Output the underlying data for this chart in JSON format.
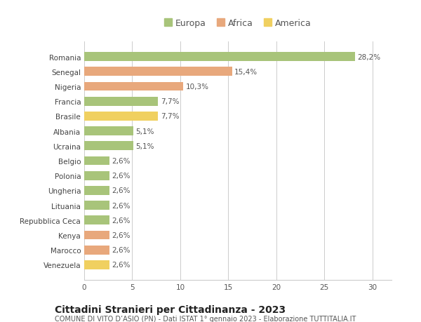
{
  "countries": [
    "Romania",
    "Senegal",
    "Nigeria",
    "Francia",
    "Brasile",
    "Albania",
    "Ucraina",
    "Belgio",
    "Polonia",
    "Ungheria",
    "Lituania",
    "Repubblica Ceca",
    "Kenya",
    "Marocco",
    "Venezuela"
  ],
  "values": [
    28.2,
    15.4,
    10.3,
    7.7,
    7.7,
    5.1,
    5.1,
    2.6,
    2.6,
    2.6,
    2.6,
    2.6,
    2.6,
    2.6,
    2.6
  ],
  "labels": [
    "28,2%",
    "15,4%",
    "10,3%",
    "7,7%",
    "7,7%",
    "5,1%",
    "5,1%",
    "2,6%",
    "2,6%",
    "2,6%",
    "2,6%",
    "2,6%",
    "2,6%",
    "2,6%",
    "2,6%"
  ],
  "continents": [
    "Europa",
    "Africa",
    "Africa",
    "Europa",
    "America",
    "Europa",
    "Europa",
    "Europa",
    "Europa",
    "Europa",
    "Europa",
    "Europa",
    "Africa",
    "Africa",
    "America"
  ],
  "colors": {
    "Europa": "#a8c47a",
    "Africa": "#e8a87c",
    "America": "#f0d060"
  },
  "title": "Cittadini Stranieri per Cittadinanza - 2023",
  "subtitle": "COMUNE DI VITO D’ASIO (PN) - Dati ISTAT 1° gennaio 2023 - Elaborazione TUTTITALIA.IT",
  "xlim": [
    0,
    32
  ],
  "xticks": [
    0,
    5,
    10,
    15,
    20,
    25,
    30
  ],
  "background_color": "#ffffff",
  "plot_bg_color": "#ffffff",
  "grid_color": "#cccccc",
  "bar_height": 0.6,
  "label_fontsize": 7.5,
  "title_fontsize": 10,
  "subtitle_fontsize": 7,
  "tick_fontsize": 7.5,
  "legend_fontsize": 9,
  "legend_order": [
    "Europa",
    "Africa",
    "America"
  ]
}
